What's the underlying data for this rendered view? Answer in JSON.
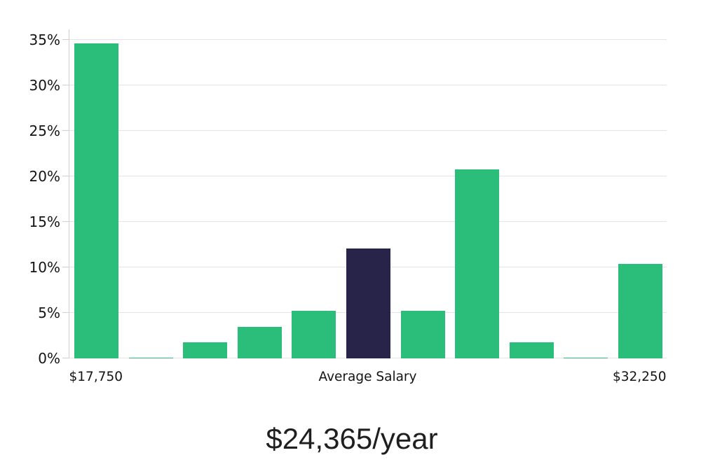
{
  "chart_data": {
    "type": "bar",
    "title": "$24,365/year",
    "xlabel": "",
    "ylabel": "",
    "ylim": [
      0,
      35
    ],
    "yticks": [
      0,
      5,
      10,
      15,
      20,
      25,
      30,
      35
    ],
    "ytick_suffix": "%",
    "grid": true,
    "legend": null,
    "values": [
      34.6,
      0.1,
      1.8,
      3.5,
      5.2,
      12.1,
      5.2,
      20.8,
      1.8,
      0.1,
      10.4
    ],
    "highlight_index": 5,
    "x_tick_labels": [
      {
        "text": "$17,750",
        "bar_index": 0
      },
      {
        "text": "Average Salary",
        "bar_index": 5
      },
      {
        "text": "$32,250",
        "bar_index": 10
      }
    ],
    "colors": {
      "bar": "#2bbe7a",
      "highlight_bar": "#282449",
      "gridline": "#e4e4e4",
      "axis_line": "#cfcfcf",
      "tick_label": "#141414",
      "title": "#1f1f1f",
      "background": "#ffffff"
    }
  }
}
